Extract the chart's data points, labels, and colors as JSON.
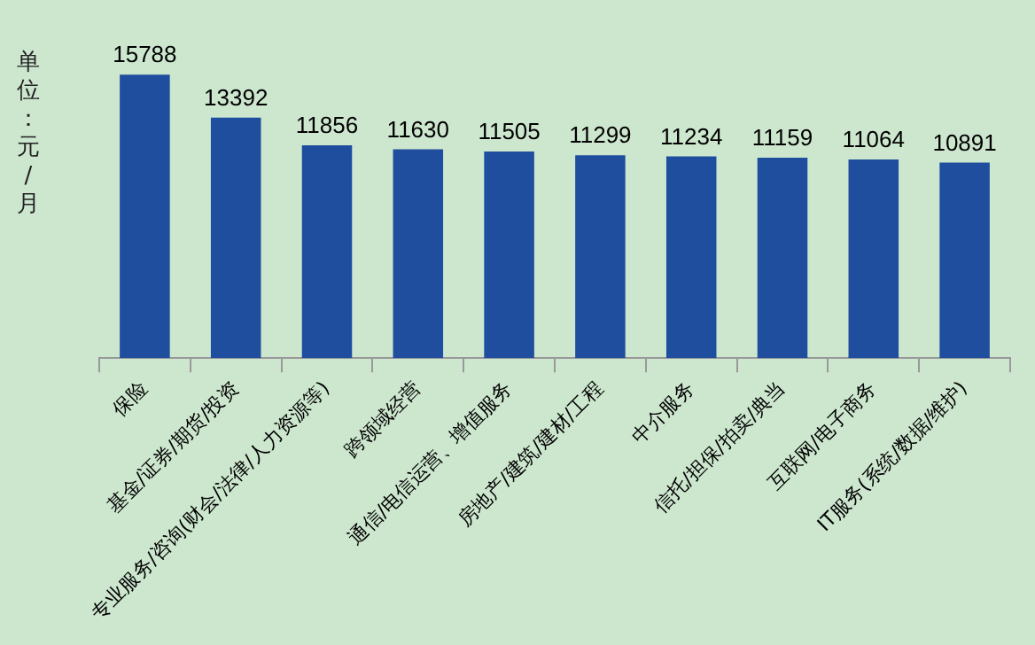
{
  "chart_data": {
    "type": "bar",
    "ylabel": "单位：元/月",
    "categories": [
      "保险",
      "基金/证券/期货/投资",
      "专业服务/咨询(财会/法律/人力资源等)",
      "跨领域经营",
      "通信/电信运营、增值服务",
      "房地产/建筑/建材/工程",
      "中介服务",
      "信托/担保/拍卖/典当",
      "互联网/电子商务",
      "IT服务(系统/数据/维护)"
    ],
    "values": [
      15788,
      13392,
      11856,
      11630,
      11505,
      11299,
      11234,
      11159,
      11064,
      10891
    ],
    "color": "#1f4e9e",
    "data_labels": true,
    "tick_labels": "x",
    "grid": false,
    "legend": false
  }
}
